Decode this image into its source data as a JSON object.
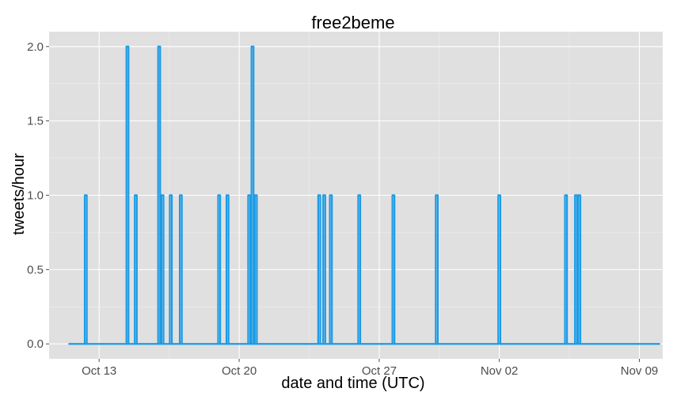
{
  "chart_data": {
    "type": "line",
    "title": "free2beme",
    "xlabel": "date and time (UTC)",
    "ylabel": "tweets/hour",
    "x_axis_kind": "datetime",
    "xlim": [
      "2015-10-10T12:00",
      "2015-11-10T04:00"
    ],
    "ylim": [
      -0.1,
      2.1
    ],
    "x_ticks": [
      {
        "date": "2015-10-13T00:00",
        "label": "Oct 13"
      },
      {
        "date": "2015-10-20T00:00",
        "label": "Oct 20"
      },
      {
        "date": "2015-10-27T00:00",
        "label": "Oct 27"
      },
      {
        "date": "2015-11-02T00:00",
        "label": "Nov 02"
      },
      {
        "date": "2015-11-09T00:00",
        "label": "Nov 09"
      }
    ],
    "y_ticks": [
      0,
      0.5,
      1,
      1.5,
      2
    ],
    "y_tick_labels": [
      "0.0",
      "0.5",
      "1.0",
      "1.5",
      "2.0"
    ],
    "grid": true,
    "background": "#e0e0e0",
    "grid_color": "#ffffff",
    "series": [
      {
        "color": "#1b9be6",
        "baseline": 0,
        "start": "2015-10-11T12:00",
        "end": "2015-11-10T00:00",
        "spikes": [
          {
            "date": "2015-10-12T08:00",
            "value": 1
          },
          {
            "date": "2015-10-14T10:00",
            "value": 2
          },
          {
            "date": "2015-10-14T20:00",
            "value": 1
          },
          {
            "date": "2015-10-16T00:00",
            "value": 2
          },
          {
            "date": "2015-10-16T04:00",
            "value": 1
          },
          {
            "date": "2015-10-16T14:00",
            "value": 1
          },
          {
            "date": "2015-10-17T02:00",
            "value": 1
          },
          {
            "date": "2015-10-19T00:00",
            "value": 1
          },
          {
            "date": "2015-10-19T10:00",
            "value": 1
          },
          {
            "date": "2015-10-20T12:00",
            "value": 1
          },
          {
            "date": "2015-10-20T16:00",
            "value": 2
          },
          {
            "date": "2015-10-20T20:00",
            "value": 1
          },
          {
            "date": "2015-10-24T00:00",
            "value": 1
          },
          {
            "date": "2015-10-24T06:00",
            "value": 1
          },
          {
            "date": "2015-10-24T14:00",
            "value": 1
          },
          {
            "date": "2015-10-26T00:00",
            "value": 1
          },
          {
            "date": "2015-10-27T17:00",
            "value": 1
          },
          {
            "date": "2015-10-29T21:00",
            "value": 1
          },
          {
            "date": "2015-11-02T00:00",
            "value": 1
          },
          {
            "date": "2015-11-05T08:00",
            "value": 1
          },
          {
            "date": "2015-11-05T20:00",
            "value": 1
          },
          {
            "date": "2015-11-06T00:00",
            "value": 1
          }
        ]
      }
    ]
  }
}
